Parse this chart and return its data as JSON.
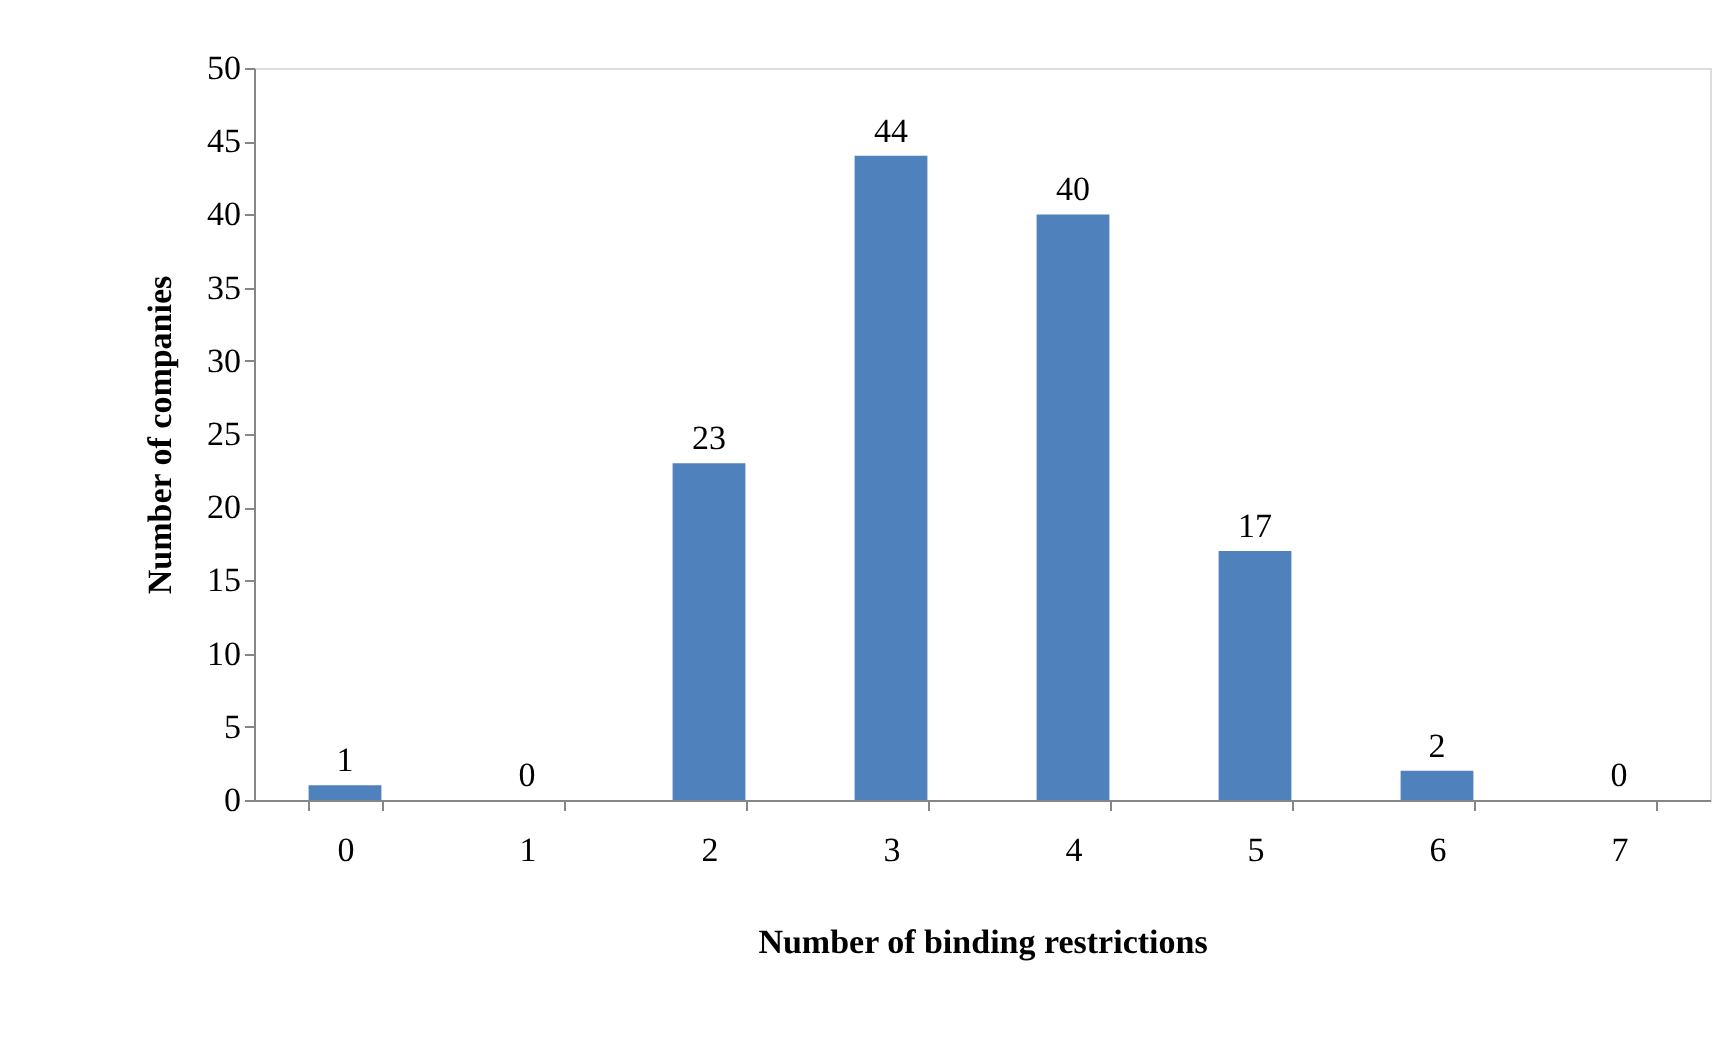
{
  "chart_data": {
    "type": "bar",
    "xlabel": "Number of binding restrictions",
    "ylabel": "Number of companies",
    "categories": [
      "0",
      "1",
      "2",
      "3",
      "4",
      "5",
      "6",
      "7"
    ],
    "values": [
      1,
      0,
      23,
      44,
      40,
      17,
      2,
      0
    ],
    "color": "#4f81bd",
    "ylim": [
      0,
      50
    ],
    "yticks": [
      0,
      5,
      10,
      15,
      20,
      25,
      30,
      35,
      40,
      45,
      50
    ],
    "grid": false,
    "data_labels": true
  }
}
